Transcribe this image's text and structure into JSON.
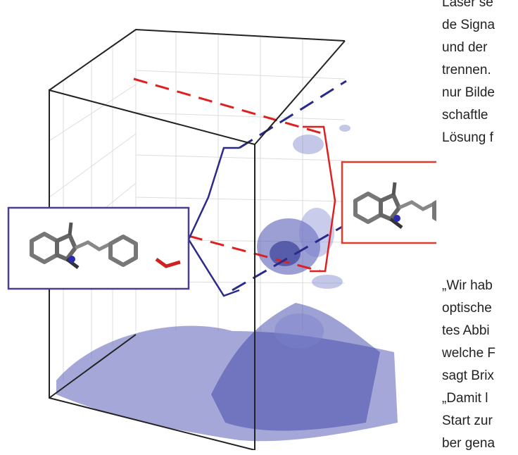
{
  "right_column": {
    "top_lines": [
      "Laser se",
      "de Signa",
      "und der",
      "trennen.",
      "nur Bilde",
      "schaftle",
      "Lösung f"
    ],
    "bottom_lines": [
      "„Wir hab",
      "optische",
      "tes Abbi",
      "welche F",
      "sagt Brix",
      "„Damit l",
      "Start zur",
      "ber gena"
    ]
  }
}
